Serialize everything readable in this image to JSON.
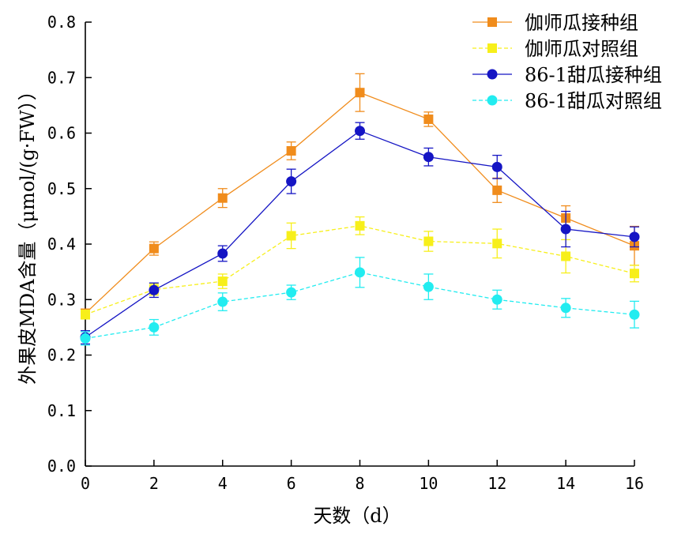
{
  "chart_data": {
    "type": "line",
    "title": "",
    "xlabel": "天数（d）",
    "ylabel": "外果皮MDA含量（μmol/(g·FW））",
    "xlim": [
      0,
      16
    ],
    "ylim": [
      0,
      0.8
    ],
    "x": [
      0,
      2,
      4,
      6,
      8,
      10,
      12,
      14,
      16
    ],
    "xticks": [
      "0",
      "2",
      "4",
      "6",
      "8",
      "10",
      "12",
      "14",
      "16"
    ],
    "yticks": [
      "0.0",
      "0.1",
      "0.2",
      "0.3",
      "0.4",
      "0.5",
      "0.6",
      "0.7",
      "0.8"
    ],
    "grid": false,
    "legend_position": "top-right",
    "series": [
      {
        "name": "伽师瓜接种组",
        "color": "#f08c1c",
        "marker": "square",
        "line_style": "solid",
        "values": [
          0.275,
          0.392,
          0.483,
          0.568,
          0.673,
          0.625,
          0.497,
          0.447,
          0.397
        ],
        "errors": [
          0.008,
          0.012,
          0.017,
          0.016,
          0.034,
          0.013,
          0.022,
          0.022,
          0.035
        ]
      },
      {
        "name": "伽师瓜对照组",
        "color": "#f7ef1a",
        "marker": "square",
        "line_style": "dashed",
        "values": [
          0.273,
          0.318,
          0.333,
          0.415,
          0.433,
          0.405,
          0.401,
          0.378,
          0.347
        ],
        "errors": [
          0.008,
          0.01,
          0.013,
          0.023,
          0.016,
          0.018,
          0.026,
          0.03,
          0.015
        ]
      },
      {
        "name": "86-1甜瓜接种组",
        "color": "#1515c4",
        "marker": "circle",
        "line_style": "solid",
        "values": [
          0.232,
          0.317,
          0.383,
          0.513,
          0.604,
          0.557,
          0.539,
          0.427,
          0.413
        ],
        "errors": [
          0.012,
          0.013,
          0.014,
          0.022,
          0.015,
          0.016,
          0.021,
          0.032,
          0.018
        ]
      },
      {
        "name": "86-1甜瓜对照组",
        "color": "#22ecf0",
        "marker": "circle",
        "line_style": "dashed",
        "values": [
          0.23,
          0.25,
          0.296,
          0.313,
          0.349,
          0.323,
          0.3,
          0.285,
          0.273
        ],
        "errors": [
          0.012,
          0.014,
          0.016,
          0.013,
          0.027,
          0.023,
          0.017,
          0.017,
          0.024
        ]
      }
    ]
  }
}
